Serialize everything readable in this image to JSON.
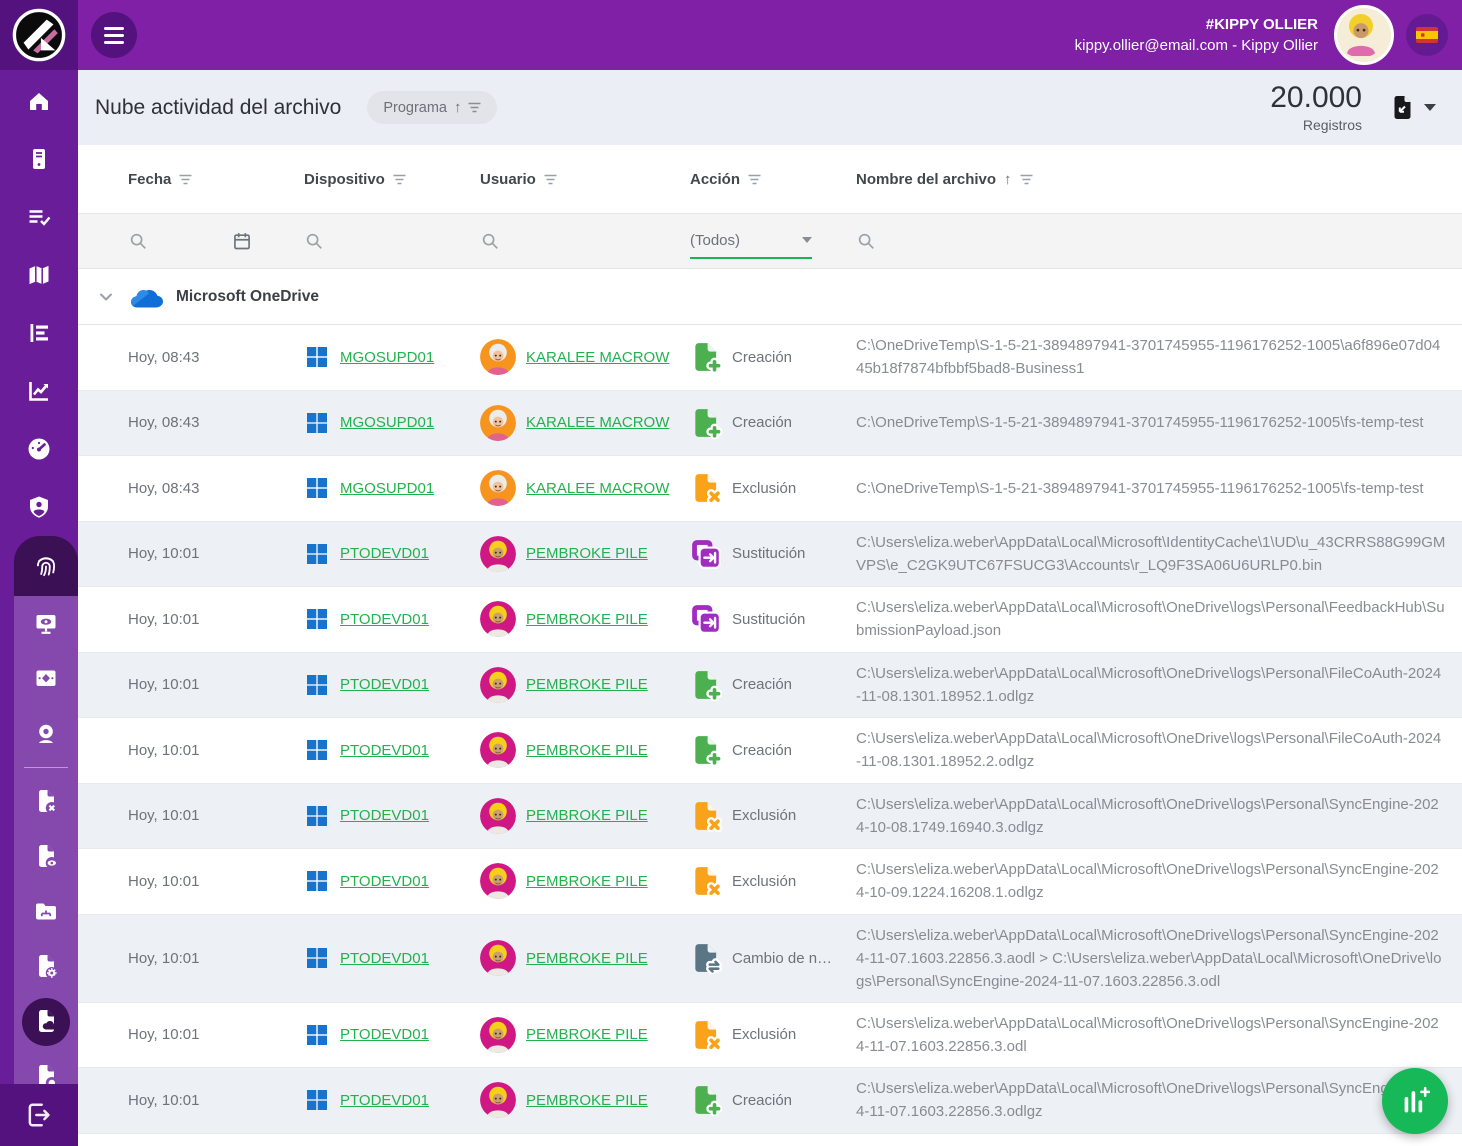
{
  "topbar": {
    "account_name": "#KIPPY OLLIER",
    "account_detail": "kippy.ollier@email.com - Kippy Ollier"
  },
  "header": {
    "title": "Nube actividad del archivo",
    "sort_chip_label": "Programa",
    "records_value": "20.000",
    "records_label": "Registros"
  },
  "sidebar": {
    "items": [
      "home",
      "devices",
      "task-list",
      "map",
      "levels-report",
      "line-chart-report",
      "gauge-dashboard",
      "security-shield",
      "fingerprint-evidence",
      "screen-monitor",
      "screenshot",
      "webcam",
      "file-deleted",
      "file-viewed",
      "network-folder",
      "file-settings",
      "cloud-file-activity",
      "file-extra",
      "logout"
    ],
    "active_item": "cloud-file-activity"
  },
  "table": {
    "columns": {
      "fecha": "Fecha",
      "dispositivo": "Dispositivo",
      "usuario": "Usuario",
      "accion": "Acción",
      "nombre": "Nombre del archivo"
    },
    "filters": {
      "action_select_value": "(Todos)"
    },
    "group_label": "Microsoft OneDrive",
    "rows": [
      {
        "time": "Hoy, 08:43",
        "device": "MGOSUPD01",
        "user": "KARALEE MACROW",
        "avatar": "karalee",
        "action": {
          "type": "creacion",
          "label": "Creación"
        },
        "path": "C:\\OneDriveTemp\\S-1-5-21-3894897941-3701745955-1196176252-1005\\a6f896e07d0445b18f7874bfbbf5bad8-Business1"
      },
      {
        "time": "Hoy, 08:43",
        "device": "MGOSUPD01",
        "user": "KARALEE MACROW",
        "avatar": "karalee",
        "action": {
          "type": "creacion",
          "label": "Creación"
        },
        "path": "C:\\OneDriveTemp\\S-1-5-21-3894897941-3701745955-1196176252-1005\\fs-temp-test"
      },
      {
        "time": "Hoy, 08:43",
        "device": "MGOSUPD01",
        "user": "KARALEE MACROW",
        "avatar": "karalee",
        "action": {
          "type": "exclusion",
          "label": "Exclusión"
        },
        "path": "C:\\OneDriveTemp\\S-1-5-21-3894897941-3701745955-1196176252-1005\\fs-temp-test"
      },
      {
        "time": "Hoy, 10:01",
        "device": "PTODEVD01",
        "user": "PEMBROKE PILE",
        "avatar": "pembroke",
        "action": {
          "type": "sustitucion",
          "label": "Sustitución"
        },
        "path": "C:\\Users\\eliza.weber\\AppData\\Local\\Microsoft\\IdentityCache\\1\\UD\\u_43CRRS88G99GMVPS\\e_C2GK9UTC67FSUCG3\\Accounts\\r_LQ9F3SA06U6URLP0.bin"
      },
      {
        "time": "Hoy, 10:01",
        "device": "PTODEVD01",
        "user": "PEMBROKE PILE",
        "avatar": "pembroke",
        "action": {
          "type": "sustitucion",
          "label": "Sustitución"
        },
        "path": "C:\\Users\\eliza.weber\\AppData\\Local\\Microsoft\\OneDrive\\logs\\Personal\\FeedbackHub\\SubmissionPayload.json"
      },
      {
        "time": "Hoy, 10:01",
        "device": "PTODEVD01",
        "user": "PEMBROKE PILE",
        "avatar": "pembroke",
        "action": {
          "type": "creacion",
          "label": "Creación"
        },
        "path": "C:\\Users\\eliza.weber\\AppData\\Local\\Microsoft\\OneDrive\\logs\\Personal\\FileCoAuth-2024-11-08.1301.18952.1.odlgz"
      },
      {
        "time": "Hoy, 10:01",
        "device": "PTODEVD01",
        "user": "PEMBROKE PILE",
        "avatar": "pembroke",
        "action": {
          "type": "creacion",
          "label": "Creación"
        },
        "path": "C:\\Users\\eliza.weber\\AppData\\Local\\Microsoft\\OneDrive\\logs\\Personal\\FileCoAuth-2024-11-08.1301.18952.2.odlgz"
      },
      {
        "time": "Hoy, 10:01",
        "device": "PTODEVD01",
        "user": "PEMBROKE PILE",
        "avatar": "pembroke",
        "action": {
          "type": "exclusion",
          "label": "Exclusión"
        },
        "path": "C:\\Users\\eliza.weber\\AppData\\Local\\Microsoft\\OneDrive\\logs\\Personal\\SyncEngine-2024-10-08.1749.16940.3.odlgz"
      },
      {
        "time": "Hoy, 10:01",
        "device": "PTODEVD01",
        "user": "PEMBROKE PILE",
        "avatar": "pembroke",
        "action": {
          "type": "exclusion",
          "label": "Exclusión"
        },
        "path": "C:\\Users\\eliza.weber\\AppData\\Local\\Microsoft\\OneDrive\\logs\\Personal\\SyncEngine-2024-10-09.1224.16208.1.odlgz"
      },
      {
        "time": "Hoy, 10:01",
        "device": "PTODEVD01",
        "user": "PEMBROKE PILE",
        "avatar": "pembroke",
        "action": {
          "type": "cambio",
          "label": "Cambio de n…"
        },
        "path": "C:\\Users\\eliza.weber\\AppData\\Local\\Microsoft\\OneDrive\\logs\\Personal\\SyncEngine-2024-11-07.1603.22856.3.aodl > C:\\Users\\eliza.weber\\AppData\\Local\\Microsoft\\OneDrive\\logs\\Personal\\SyncEngine-2024-11-07.1603.22856.3.odl"
      },
      {
        "time": "Hoy, 10:01",
        "device": "PTODEVD01",
        "user": "PEMBROKE PILE",
        "avatar": "pembroke",
        "action": {
          "type": "exclusion",
          "label": "Exclusión"
        },
        "path": "C:\\Users\\eliza.weber\\AppData\\Local\\Microsoft\\OneDrive\\logs\\Personal\\SyncEngine-2024-11-07.1603.22856.3.odl"
      },
      {
        "time": "Hoy, 10:01",
        "device": "PTODEVD01",
        "user": "PEMBROKE PILE",
        "avatar": "pembroke",
        "action": {
          "type": "creacion",
          "label": "Creación"
        },
        "path": "C:\\Users\\eliza.weber\\AppData\\Local\\Microsoft\\OneDrive\\logs\\Personal\\SyncEngine-2024-11-07.1603.22856.3.odlgz"
      }
    ]
  },
  "colors": {
    "topbar_purple": "#7f20a6",
    "sidebar_purple": "#6a1d98",
    "submenu_purple": "#8549ae",
    "active_dark_purple": "#3c1054",
    "link_green": "#21b24f",
    "fab_green": "#17b857",
    "action_create": "#4caf50",
    "action_delete": "#f9a31a",
    "action_replace": "#a12cc0",
    "action_rename": "#5a7684",
    "windows_blue": "#1873cc"
  }
}
